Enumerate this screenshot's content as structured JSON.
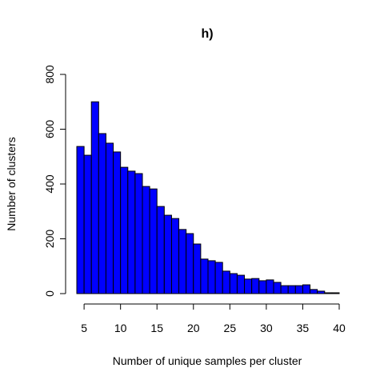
{
  "chart_data": {
    "type": "histogram",
    "title": "h)",
    "x_label": "Number of unique samples per cluster",
    "y_label": "Number of clusters",
    "bins": [
      4,
      5,
      6,
      7,
      8,
      9,
      10,
      11,
      12,
      13,
      14,
      15,
      16,
      17,
      18,
      19,
      20,
      21,
      22,
      23,
      24,
      25,
      26,
      27,
      28,
      29,
      30,
      31,
      32,
      33,
      34,
      35,
      36,
      37,
      38,
      39,
      40
    ],
    "counts": [
      537,
      505,
      700,
      584,
      549,
      517,
      461,
      447,
      438,
      391,
      382,
      318,
      286,
      274,
      234,
      219,
      181,
      126,
      120,
      114,
      82,
      73,
      67,
      53,
      55,
      47,
      50,
      41,
      29,
      29,
      29,
      32,
      15,
      9,
      3,
      3
    ],
    "color": "#0000ff",
    "xlim": [
      4,
      40
    ],
    "xticks": [
      5,
      10,
      15,
      20,
      25,
      30,
      35,
      40
    ],
    "ylim": [
      0,
      800
    ],
    "yticks": [
      0,
      200,
      400,
      600,
      800
    ]
  }
}
